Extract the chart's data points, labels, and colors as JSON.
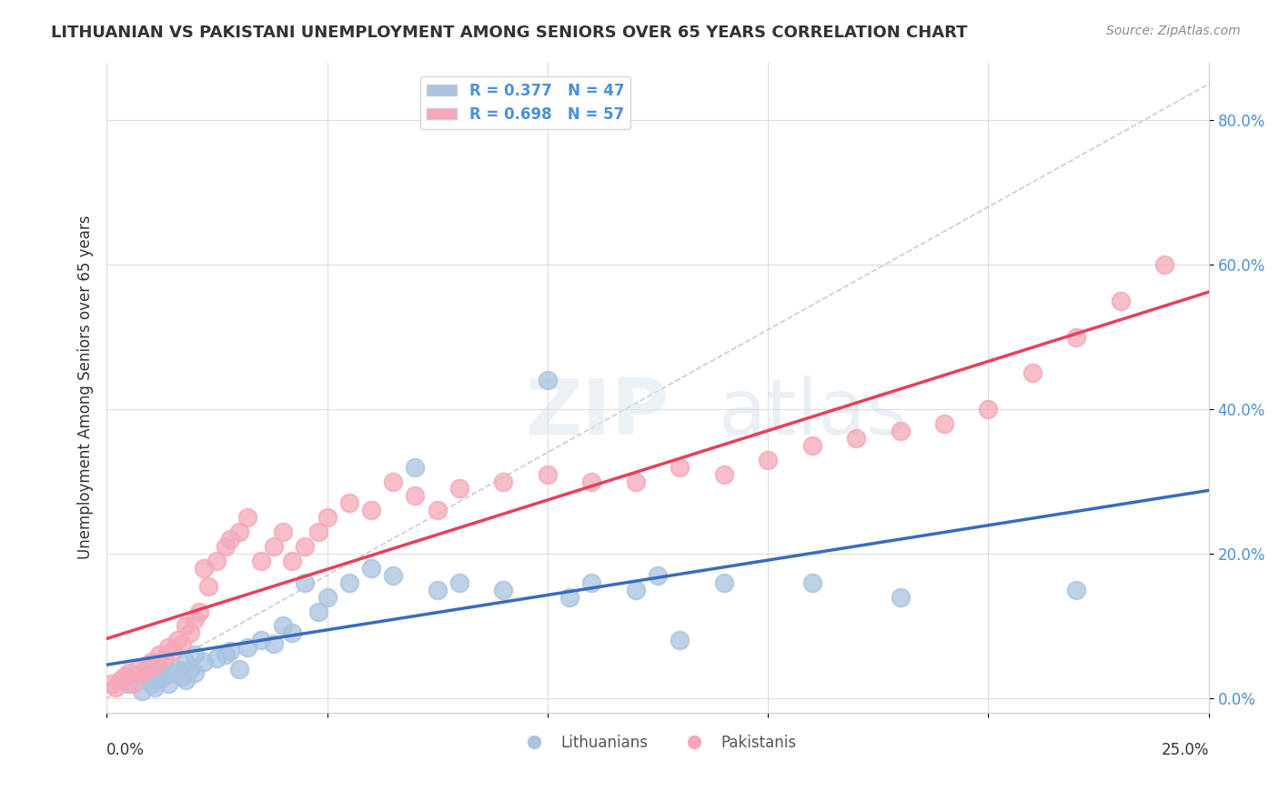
{
  "title": "LITHUANIAN VS PAKISTANI UNEMPLOYMENT AMONG SENIORS OVER 65 YEARS CORRELATION CHART",
  "source": "Source: ZipAtlas.com",
  "ylabel": "Unemployment Among Seniors over 65 years",
  "ylabel_ticks": [
    "0.0%",
    "20.0%",
    "40.0%",
    "60.0%",
    "80.0%"
  ],
  "ylabel_tick_vals": [
    0.0,
    0.2,
    0.4,
    0.6,
    0.8
  ],
  "xlim": [
    0.0,
    0.25
  ],
  "ylim": [
    -0.02,
    0.88
  ],
  "legend_label1": "Lithuanians",
  "legend_label2": "Pakistanis",
  "R_lit": 0.377,
  "N_lit": 47,
  "R_pak": 0.698,
  "N_pak": 57,
  "color_lit": "#a8c4e0",
  "color_pak": "#f4a8b8",
  "line_color_lit": "#3a6bbd",
  "line_color_pak": "#e8405a",
  "diag_line_color": "#cccccc",
  "background_color": "#ffffff",
  "label_color": "#4a90d9",
  "lit_x": [
    0.005,
    0.008,
    0.009,
    0.01,
    0.011,
    0.012,
    0.012,
    0.013,
    0.014,
    0.015,
    0.016,
    0.017,
    0.018,
    0.018,
    0.019,
    0.02,
    0.02,
    0.022,
    0.025,
    0.027,
    0.028,
    0.03,
    0.032,
    0.035,
    0.038,
    0.04,
    0.042,
    0.045,
    0.048,
    0.05,
    0.055,
    0.06,
    0.065,
    0.07,
    0.075,
    0.08,
    0.09,
    0.1,
    0.105,
    0.11,
    0.12,
    0.125,
    0.13,
    0.14,
    0.16,
    0.18,
    0.22
  ],
  "lit_y": [
    0.02,
    0.01,
    0.03,
    0.02,
    0.015,
    0.025,
    0.04,
    0.03,
    0.02,
    0.035,
    0.04,
    0.03,
    0.05,
    0.025,
    0.04,
    0.035,
    0.06,
    0.05,
    0.055,
    0.06,
    0.065,
    0.04,
    0.07,
    0.08,
    0.075,
    0.1,
    0.09,
    0.16,
    0.12,
    0.14,
    0.16,
    0.18,
    0.17,
    0.32,
    0.15,
    0.16,
    0.15,
    0.44,
    0.14,
    0.16,
    0.15,
    0.17,
    0.08,
    0.16,
    0.16,
    0.14,
    0.15
  ],
  "pak_x": [
    0.001,
    0.002,
    0.003,
    0.004,
    0.005,
    0.006,
    0.007,
    0.008,
    0.009,
    0.01,
    0.011,
    0.012,
    0.013,
    0.014,
    0.015,
    0.016,
    0.017,
    0.018,
    0.019,
    0.02,
    0.021,
    0.022,
    0.023,
    0.025,
    0.027,
    0.028,
    0.03,
    0.032,
    0.035,
    0.038,
    0.04,
    0.042,
    0.045,
    0.048,
    0.05,
    0.055,
    0.06,
    0.065,
    0.07,
    0.075,
    0.08,
    0.09,
    0.1,
    0.11,
    0.12,
    0.13,
    0.14,
    0.15,
    0.16,
    0.17,
    0.18,
    0.19,
    0.2,
    0.21,
    0.22,
    0.23,
    0.24
  ],
  "pak_y": [
    0.02,
    0.015,
    0.025,
    0.03,
    0.035,
    0.02,
    0.04,
    0.035,
    0.04,
    0.05,
    0.045,
    0.06,
    0.055,
    0.07,
    0.065,
    0.08,
    0.075,
    0.1,
    0.09,
    0.11,
    0.12,
    0.18,
    0.155,
    0.19,
    0.21,
    0.22,
    0.23,
    0.25,
    0.19,
    0.21,
    0.23,
    0.19,
    0.21,
    0.23,
    0.25,
    0.27,
    0.26,
    0.3,
    0.28,
    0.26,
    0.29,
    0.3,
    0.31,
    0.3,
    0.3,
    0.32,
    0.31,
    0.33,
    0.35,
    0.36,
    0.37,
    0.38,
    0.4,
    0.45,
    0.5,
    0.55,
    0.6
  ]
}
